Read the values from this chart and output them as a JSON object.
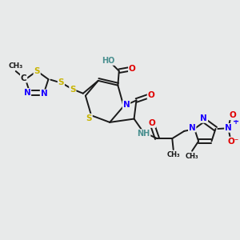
{
  "bg_color": "#e8eaea",
  "bond_color": "#1a1a1a",
  "bond_width": 1.4,
  "fs": 7.5,
  "colors": {
    "N": "#1a00ff",
    "O": "#e00000",
    "S": "#c8b400",
    "H": "#4a9090",
    "C": "#1a1a1a"
  },
  "xlim": [
    0,
    10
  ],
  "ylim": [
    0,
    10
  ]
}
